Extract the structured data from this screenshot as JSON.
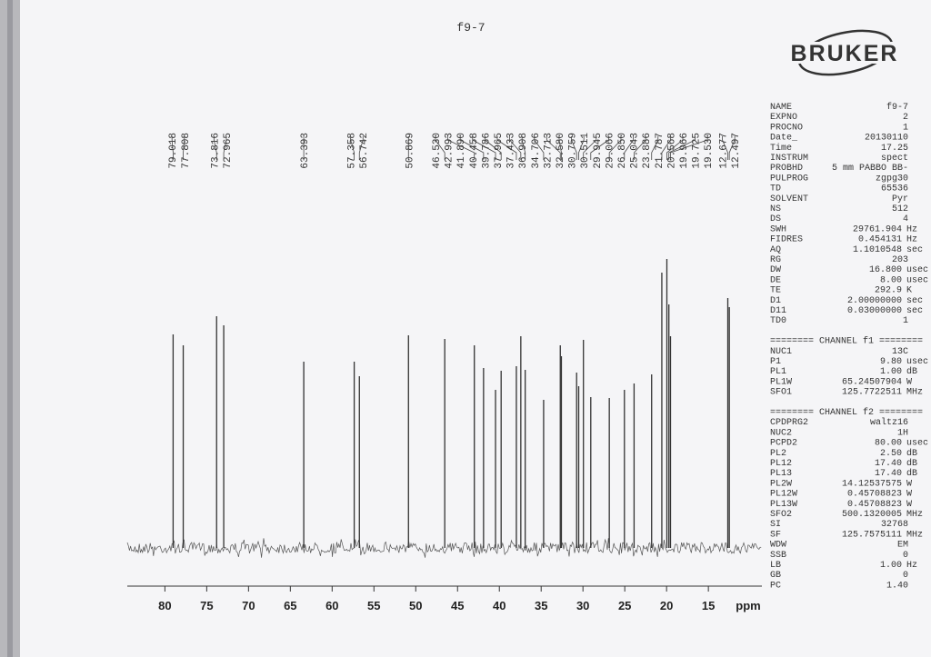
{
  "chart_data": {
    "type": "stick",
    "title": "f9-7",
    "x_label": "ppm",
    "x": [
      79.018,
      77.808,
      73.816,
      72.965,
      63.393,
      57.358,
      56.742,
      50.869,
      46.53,
      42.993,
      41.89,
      40.458,
      39.786,
      37.965,
      37.433,
      36.908,
      34.706,
      32.713,
      32.58,
      30.759,
      30.511,
      29.945,
      29.066,
      26.85,
      25.043,
      23.886,
      21.787,
      20.568,
      19.966,
      19.725,
      19.53,
      12.677,
      12.497
    ],
    "x_labels": [
      "79.018",
      "77.808",
      "73.816",
      "72.965",
      "63.393",
      "57.358",
      "56.742",
      "50.869",
      "46.530",
      "42.993",
      "41.890",
      "40.458",
      "39.786",
      "37.965",
      "37.433",
      "36.908",
      "34.706",
      "32.713",
      "32.580",
      "30.759",
      "30.511",
      "29.945",
      "29.066",
      "26.850",
      "25.043",
      "23.886",
      "21.787",
      "20.568",
      "19.966",
      "19.725",
      "19.530",
      "12.677",
      "12.497"
    ],
    "values": [
      235,
      223,
      255,
      245,
      205,
      205,
      189,
      234,
      230,
      223,
      198,
      174,
      195,
      200,
      233,
      196,
      163,
      223,
      211,
      193,
      178,
      229,
      166,
      165,
      174,
      181,
      191,
      303,
      318,
      268,
      233,
      275,
      265
    ],
    "color": "#333333",
    "xlim": [
      84.5,
      8.6
    ],
    "xticks": [
      80,
      75,
      70,
      65,
      60,
      55,
      50,
      45,
      40,
      35,
      30,
      25,
      20,
      15
    ],
    "ylim": [
      0,
      330
    ]
  },
  "acquisition": {
    "logo": "BRUKER",
    "sections": [
      {
        "rows": [
          {
            "name": "NAME",
            "value": "f9-7"
          },
          {
            "name": "EXPNO",
            "value": "2"
          },
          {
            "name": "PROCNO",
            "value": "1"
          },
          {
            "name": "Date_",
            "value": "20130110"
          },
          {
            "name": "Time",
            "value": "17.25"
          },
          {
            "name": "INSTRUM",
            "value": "spect"
          },
          {
            "name": "PROBHD",
            "value": "5 mm PABBO BB-"
          },
          {
            "name": "PULPROG",
            "value": "zgpg30"
          },
          {
            "name": "TD",
            "value": "65536"
          },
          {
            "name": "SOLVENT",
            "value": "Pyr"
          },
          {
            "name": "NS",
            "value": "512"
          },
          {
            "name": "DS",
            "value": "4"
          },
          {
            "name": "SWH",
            "value": "29761.904",
            "unit": "Hz"
          },
          {
            "name": "FIDRES",
            "value": "0.454131",
            "unit": "Hz"
          },
          {
            "name": "AQ",
            "value": "1.1010548",
            "unit": "sec"
          },
          {
            "name": "RG",
            "value": "203"
          },
          {
            "name": "DW",
            "value": "16.800",
            "unit": "usec"
          },
          {
            "name": "DE",
            "value": "8.00",
            "unit": "usec"
          },
          {
            "name": "TE",
            "value": "292.9",
            "unit": "K"
          },
          {
            "name": "D1",
            "value": "2.00000000",
            "unit": "sec"
          },
          {
            "name": "D11",
            "value": "0.03000000",
            "unit": "sec"
          },
          {
            "name": "TD0",
            "value": "1"
          }
        ]
      },
      {
        "header": "======== CHANNEL f1 ========",
        "rows": [
          {
            "name": "NUC1",
            "value": "13C"
          },
          {
            "name": "P1",
            "value": "9.80",
            "unit": "usec"
          },
          {
            "name": "PL1",
            "value": "1.00",
            "unit": "dB"
          },
          {
            "name": "PL1W",
            "value": "65.24507904",
            "unit": "W"
          },
          {
            "name": "SFO1",
            "value": "125.7722511",
            "unit": "MHz"
          }
        ]
      },
      {
        "header": "======== CHANNEL f2 ========",
        "rows": [
          {
            "name": "CPDPRG2",
            "value": "waltz16"
          },
          {
            "name": "NUC2",
            "value": "1H"
          },
          {
            "name": "PCPD2",
            "value": "80.00",
            "unit": "usec"
          },
          {
            "name": "PL2",
            "value": "2.50",
            "unit": "dB"
          },
          {
            "name": "PL12",
            "value": "17.40",
            "unit": "dB"
          },
          {
            "name": "PL13",
            "value": "17.40",
            "unit": "dB"
          },
          {
            "name": "PL2W",
            "value": "14.12537575",
            "unit": "W"
          },
          {
            "name": "PL12W",
            "value": "0.45708823",
            "unit": "W"
          },
          {
            "name": "PL13W",
            "value": "0.45708823",
            "unit": "W"
          },
          {
            "name": "SFO2",
            "value": "500.1320005",
            "unit": "MHz"
          },
          {
            "name": "SI",
            "value": "32768"
          },
          {
            "name": "SF",
            "value": "125.7575111",
            "unit": "MHz"
          },
          {
            "name": "WDW",
            "value": "EM"
          },
          {
            "name": "SSB",
            "value": "0"
          },
          {
            "name": "LB",
            "value": "1.00",
            "unit": "Hz"
          },
          {
            "name": "GB",
            "value": "0"
          },
          {
            "name": "PC",
            "value": "1.40"
          }
        ]
      }
    ]
  }
}
